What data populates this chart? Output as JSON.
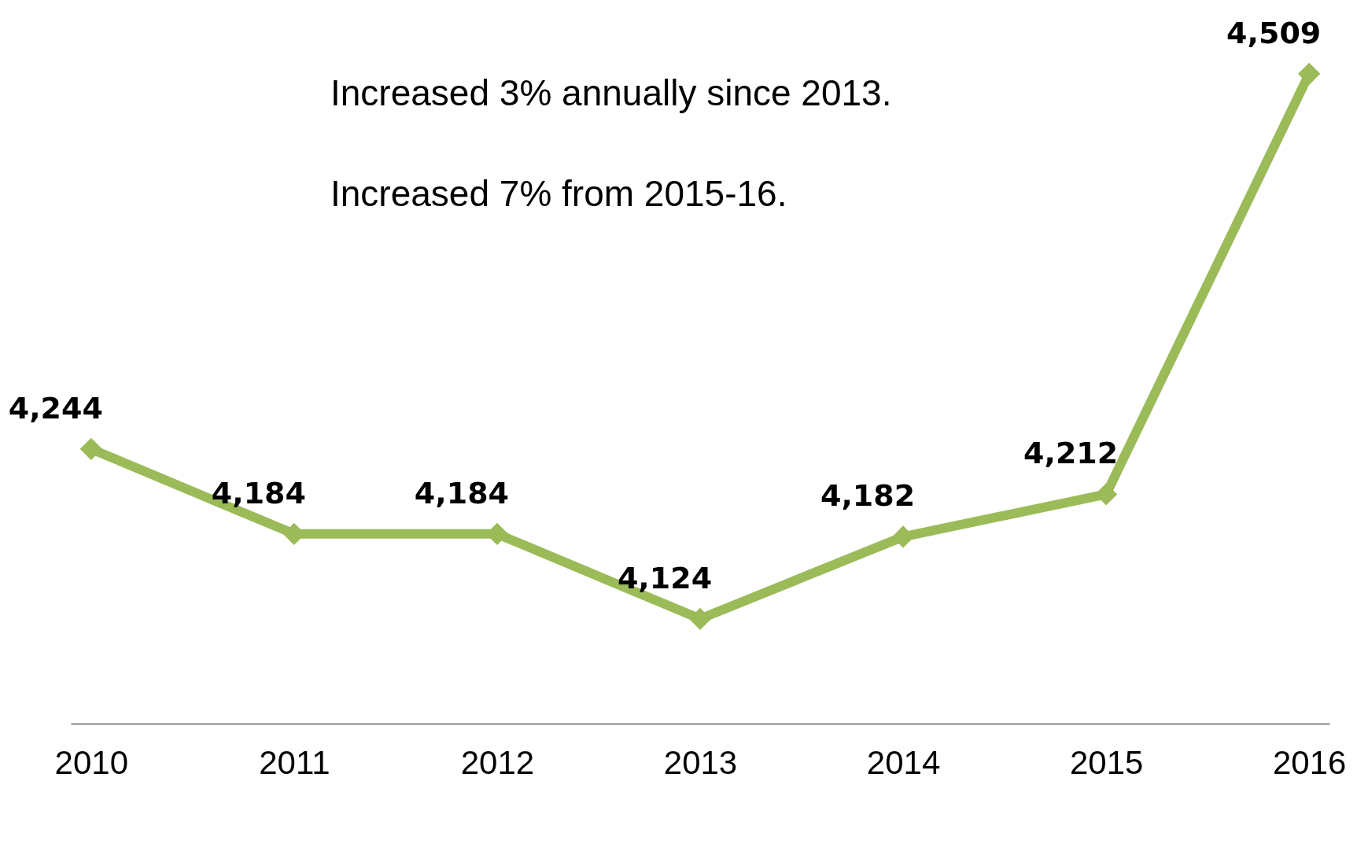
{
  "chart_data": {
    "type": "line",
    "categories": [
      "2010",
      "2011",
      "2012",
      "2013",
      "2014",
      "2015",
      "2016"
    ],
    "series": [
      {
        "color": "#9bbb59",
        "values": [
          4244,
          4184,
          4184,
          4124,
          4182,
          4212,
          4509
        ],
        "value_labels": [
          "4,244",
          "4,184",
          "4,184",
          "4,124",
          "4,182",
          "4,212",
          "4,509"
        ]
      }
    ],
    "tick_labels": "x",
    "marker": "diamond",
    "line_style": "solid",
    "annotations": [
      "Increased 3% annually since 2013.",
      "Increased 7% from 2015-16."
    ]
  }
}
